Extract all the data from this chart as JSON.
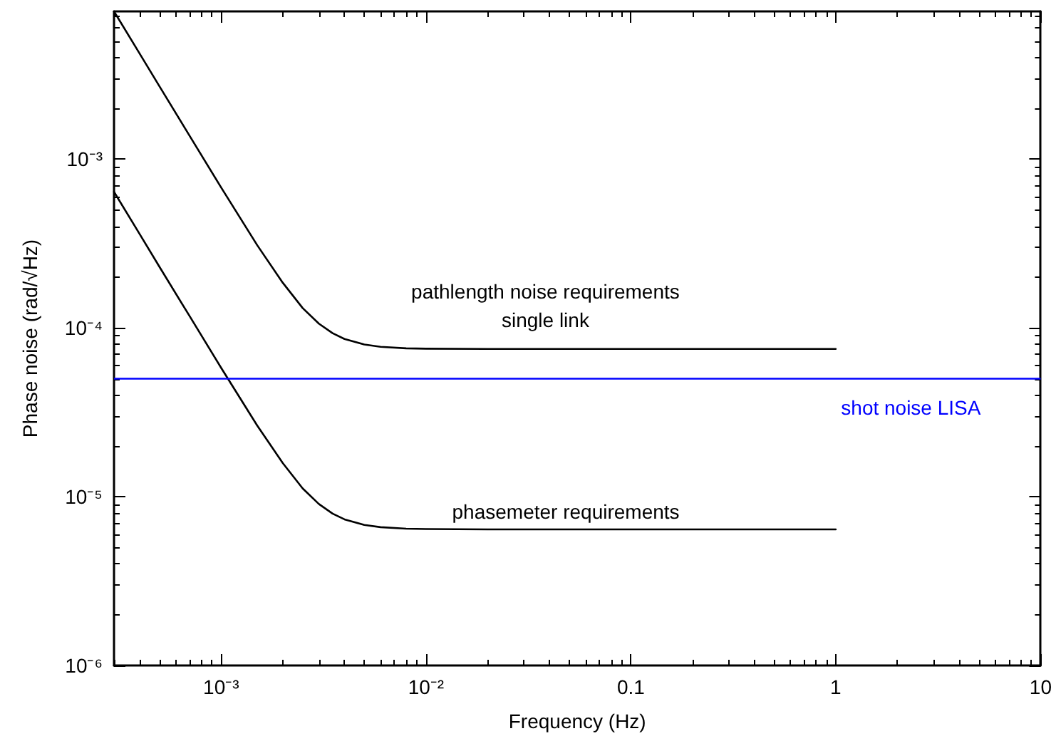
{
  "chart_data": {
    "type": "line",
    "xlabel": "Frequency (Hz)",
    "ylabel": "Phase noise (rad/√Hz)",
    "log": "xy",
    "marker": "none",
    "xlim": [
      0.0003,
      10
    ],
    "ylim": [
      1e-06,
      0.0075
    ],
    "xticks": [
      {
        "value": 0.001,
        "label": "10⁻³"
      },
      {
        "value": 0.01,
        "label": "10⁻²"
      },
      {
        "value": 0.1,
        "label": "0.1"
      },
      {
        "value": 1,
        "label": "1"
      },
      {
        "value": 10,
        "label": "10"
      }
    ],
    "yticks": [
      {
        "value": 1e-06,
        "label": "10⁻⁶"
      },
      {
        "value": 1e-05,
        "label": "10⁻⁵"
      },
      {
        "value": 0.0001,
        "label": "10⁻⁴"
      },
      {
        "value": 0.001,
        "label": "10⁻³"
      }
    ],
    "x": [
      0.0003,
      0.0004,
      0.0005,
      0.0007,
      0.001,
      0.0015,
      0.002,
      0.0025,
      0.003,
      0.0035,
      0.004,
      0.005,
      0.006,
      0.008,
      0.01,
      0.02,
      0.1,
      1
    ],
    "series": [
      {
        "color": "#000000",
        "values": [
          0.0075,
          0.00422,
          0.0027,
          0.00138,
          0.000679,
          0.000309,
          0.000185,
          0.000131,
          0.000106,
          9.3e-05,
          8.6e-05,
          7.97e-05,
          7.73e-05,
          7.57e-05,
          7.53e-05,
          7.5e-05,
          7.5e-05,
          7.5e-05
        ]
      },
      {
        "color": "#000000",
        "values": [
          0.00064,
          0.00036,
          0.00023,
          0.000118,
          5.8e-05,
          2.64e-05,
          1.58e-05,
          1.12e-05,
          9.05e-06,
          7.94e-06,
          7.34e-06,
          6.8e-06,
          6.6e-06,
          6.46e-06,
          6.43e-06,
          6.4e-06,
          6.4e-06,
          6.4e-06
        ]
      }
    ],
    "ref_lines": [
      {
        "axis": "y",
        "value": 5e-05,
        "label": "shot noise LISA",
        "color": "#0000ff"
      }
    ],
    "annotations": [
      "pathlength noise requirements\nsingle link",
      "phasemeter requirements"
    ]
  }
}
